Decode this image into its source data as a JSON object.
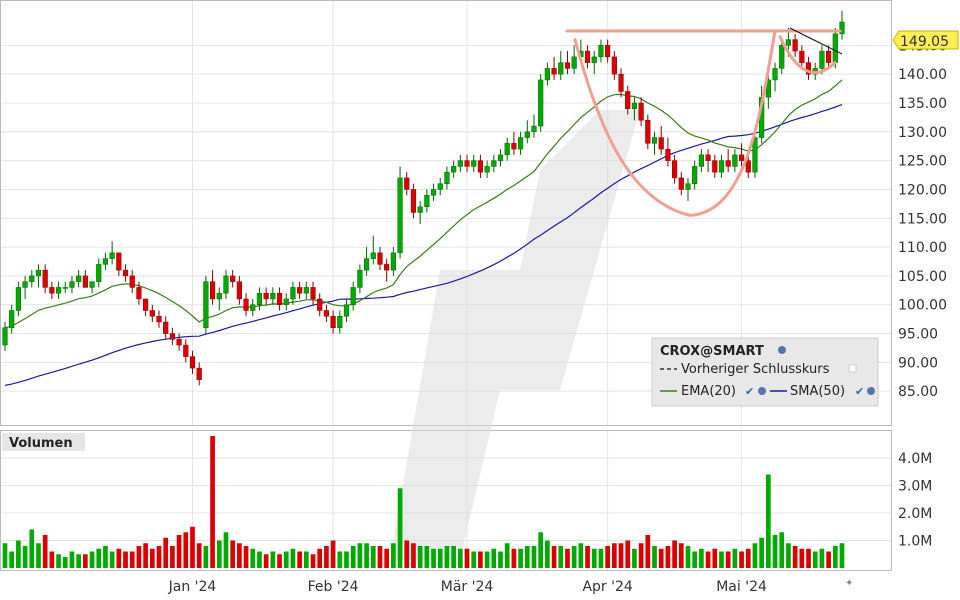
{
  "chart_data": {
    "type": "candlestick",
    "symbol": "CROX@SMART",
    "last_price_label": "149.05",
    "price_axis": {
      "ylim": [
        80,
        152
      ],
      "ticks": [
        "145.00",
        "140.00",
        "135.00",
        "130.00",
        "125.00",
        "120.00",
        "115.00",
        "110.00",
        "105.00",
        "100.00",
        "95.00",
        "90.00",
        "85.00"
      ],
      "tick_values": [
        145,
        140,
        135,
        130,
        125,
        120,
        115,
        110,
        105,
        100,
        95,
        90,
        85
      ]
    },
    "volume_axis": {
      "title": "Volumen",
      "ylim": [
        0,
        4.8
      ],
      "ticks": [
        "4.0M",
        "3.0M",
        "2.0M",
        "1.0M"
      ],
      "tick_values": [
        4,
        3,
        2,
        1
      ]
    },
    "x_labels": [
      {
        "label": "Jan '24",
        "index": 28
      },
      {
        "label": "Feb '24",
        "index": 49
      },
      {
        "label": "Mär '24",
        "index": 69
      },
      {
        "label": "Apr '24",
        "index": 90
      },
      {
        "label": "Mai '24",
        "index": 110
      }
    ],
    "legend": {
      "title": "CROX@SMART",
      "prev_close": "Vorheriger Schlusskurs",
      "ema": "EMA(20)",
      "sma": "SMA(50)"
    },
    "colors": {
      "up": "#00aa00",
      "down": "#dd0000",
      "ema": "#3a7d1a",
      "sma": "#1a1aa0",
      "pattern": "#f0a090",
      "price_tag": "#ffee55"
    },
    "candles": [
      [
        93,
        97,
        92,
        96,
        0.9
      ],
      [
        96,
        100,
        95,
        99,
        0.6
      ],
      [
        99,
        104,
        98,
        103,
        1.0
      ],
      [
        103,
        105,
        101,
        104,
        0.8
      ],
      [
        104,
        106,
        103,
        105,
        1.4
      ],
      [
        105,
        107,
        103,
        106,
        0.9
      ],
      [
        106,
        107,
        102,
        103,
        1.2
      ],
      [
        103,
        104,
        101,
        102,
        0.6
      ],
      [
        102,
        104,
        101,
        103,
        0.5
      ],
      [
        103,
        104,
        102,
        103,
        0.4
      ],
      [
        103,
        105,
        102,
        104,
        0.6
      ],
      [
        104,
        106,
        103,
        105,
        0.5
      ],
      [
        105,
        106,
        103,
        103,
        0.5
      ],
      [
        103,
        104,
        102,
        104,
        0.6
      ],
      [
        104,
        108,
        103,
        107,
        0.7
      ],
      [
        107,
        109,
        106,
        108,
        0.8
      ],
      [
        108,
        111,
        107,
        109,
        0.6
      ],
      [
        109,
        109,
        105,
        106,
        0.7
      ],
      [
        106,
        107,
        104,
        105,
        0.6
      ],
      [
        105,
        106,
        102,
        103,
        0.6
      ],
      [
        103,
        104,
        100,
        101,
        0.8
      ],
      [
        101,
        101,
        98,
        99,
        0.9
      ],
      [
        99,
        100,
        97,
        98,
        0.7
      ],
      [
        98,
        99,
        96,
        97,
        0.8
      ],
      [
        97,
        98,
        94,
        95,
        1.1
      ],
      [
        95,
        96,
        93,
        94,
        0.8
      ],
      [
        94,
        95,
        92,
        93,
        1.2
      ],
      [
        93,
        94,
        90,
        91,
        1.3
      ],
      [
        91,
        92,
        88,
        89,
        1.5
      ],
      [
        89,
        90,
        86,
        87,
        0.9
      ],
      [
        96,
        105,
        95,
        104,
        0.8
      ],
      [
        104,
        106,
        100,
        101,
        4.8
      ],
      [
        101,
        103,
        99,
        102,
        1.0
      ],
      [
        102,
        106,
        101,
        105,
        1.3
      ],
      [
        105,
        106,
        103,
        104,
        1.0
      ],
      [
        104,
        105,
        100,
        101,
        0.9
      ],
      [
        101,
        102,
        98,
        99,
        0.8
      ],
      [
        99,
        101,
        98,
        100,
        0.7
      ],
      [
        100,
        103,
        99,
        102,
        0.6
      ],
      [
        102,
        103,
        100,
        101,
        0.5
      ],
      [
        101,
        103,
        100,
        102,
        0.6
      ],
      [
        102,
        103,
        99,
        100,
        0.5
      ],
      [
        100,
        102,
        99,
        101,
        0.6
      ],
      [
        101,
        104,
        100,
        103,
        0.7
      ],
      [
        103,
        104,
        101,
        102,
        0.6
      ],
      [
        102,
        104,
        101,
        103,
        0.6
      ],
      [
        103,
        104,
        100,
        101,
        0.5
      ],
      [
        101,
        102,
        98,
        99,
        0.7
      ],
      [
        99,
        100,
        97,
        98,
        0.8
      ],
      [
        98,
        99,
        95,
        96,
        1.0
      ],
      [
        96,
        99,
        95,
        98,
        0.6
      ],
      [
        98,
        101,
        97,
        100,
        0.6
      ],
      [
        100,
        104,
        99,
        103,
        0.8
      ],
      [
        103,
        107,
        102,
        106,
        0.9
      ],
      [
        106,
        110,
        105,
        108,
        0.9
      ],
      [
        108,
        112,
        107,
        109,
        0.8
      ],
      [
        109,
        110,
        106,
        107,
        0.8
      ],
      [
        107,
        108,
        104,
        106,
        0.7
      ],
      [
        106,
        110,
        105,
        109,
        0.9
      ],
      [
        109,
        124,
        108,
        122,
        2.9
      ],
      [
        122,
        123,
        119,
        120,
        1.0
      ],
      [
        120,
        121,
        115,
        116,
        0.9
      ],
      [
        116,
        118,
        114,
        117,
        0.8
      ],
      [
        117,
        120,
        116,
        119,
        0.8
      ],
      [
        119,
        121,
        118,
        120,
        0.7
      ],
      [
        120,
        122,
        119,
        121,
        0.7
      ],
      [
        121,
        124,
        120,
        123,
        0.8
      ],
      [
        123,
        125,
        122,
        124,
        0.8
      ],
      [
        124,
        126,
        123,
        125,
        0.7
      ],
      [
        125,
        126,
        123,
        124,
        0.7
      ],
      [
        124,
        126,
        123,
        125,
        0.6
      ],
      [
        125,
        126,
        122,
        123,
        0.6
      ],
      [
        123,
        125,
        122,
        124,
        0.6
      ],
      [
        124,
        126,
        123,
        125,
        0.7
      ],
      [
        125,
        127,
        124,
        126,
        0.6
      ],
      [
        126,
        129,
        125,
        128,
        0.9
      ],
      [
        128,
        130,
        126,
        127,
        0.7
      ],
      [
        127,
        130,
        126,
        129,
        0.7
      ],
      [
        129,
        132,
        128,
        130,
        0.8
      ],
      [
        130,
        133,
        129,
        131,
        0.8
      ],
      [
        131,
        140,
        130,
        139,
        1.3
      ],
      [
        139,
        142,
        138,
        141,
        1.0
      ],
      [
        141,
        143,
        139,
        140,
        0.8
      ],
      [
        140,
        144,
        139,
        142,
        0.8
      ],
      [
        142,
        144,
        140,
        141,
        0.7
      ],
      [
        141,
        145,
        140,
        143,
        0.8
      ],
      [
        143,
        146,
        142,
        144,
        0.9
      ],
      [
        144,
        145,
        141,
        142,
        0.8
      ],
      [
        142,
        144,
        140,
        143,
        0.7
      ],
      [
        143,
        146,
        142,
        145,
        0.7
      ],
      [
        145,
        146,
        142,
        143,
        0.8
      ],
      [
        143,
        144,
        139,
        140,
        0.9
      ],
      [
        140,
        141,
        136,
        137,
        0.9
      ],
      [
        137,
        138,
        133,
        134,
        1.0
      ],
      [
        134,
        136,
        132,
        135,
        0.7
      ],
      [
        135,
        136,
        131,
        132,
        0.9
      ],
      [
        132,
        133,
        127,
        128,
        1.2
      ],
      [
        128,
        130,
        126,
        129,
        0.8
      ],
      [
        129,
        131,
        126,
        127,
        0.7
      ],
      [
        127,
        129,
        124,
        125,
        0.8
      ],
      [
        125,
        126,
        121,
        122,
        1.0
      ],
      [
        122,
        123,
        119,
        120,
        0.9
      ],
      [
        120,
        122,
        118,
        121,
        0.8
      ],
      [
        121,
        125,
        120,
        124,
        0.6
      ],
      [
        124,
        127,
        123,
        126,
        0.7
      ],
      [
        126,
        127,
        123,
        125,
        0.6
      ],
      [
        125,
        126,
        122,
        123,
        0.7
      ],
      [
        123,
        126,
        122,
        125,
        0.6
      ],
      [
        125,
        127,
        123,
        124,
        0.6
      ],
      [
        124,
        127,
        123,
        126,
        0.7
      ],
      [
        126,
        128,
        124,
        125,
        0.6
      ],
      [
        125,
        126,
        122,
        123,
        0.7
      ],
      [
        123,
        130,
        122,
        129,
        0.9
      ],
      [
        129,
        138,
        128,
        136,
        1.1
      ],
      [
        136,
        140,
        134,
        139,
        3.4
      ],
      [
        139,
        142,
        137,
        141,
        1.2
      ],
      [
        141,
        146,
        140,
        145,
        1.3
      ],
      [
        145,
        148,
        143,
        146,
        0.9
      ],
      [
        146,
        147,
        143,
        144,
        0.8
      ],
      [
        144,
        145,
        141,
        142,
        0.7
      ],
      [
        142,
        143,
        139,
        140,
        0.7
      ],
      [
        140,
        142,
        139,
        141,
        0.6
      ],
      [
        141,
        145,
        140,
        144,
        0.7
      ],
      [
        144,
        145,
        141,
        142,
        0.6
      ],
      [
        142,
        148,
        141,
        147,
        0.8
      ],
      [
        147,
        151,
        146,
        149.05,
        0.9
      ]
    ]
  }
}
